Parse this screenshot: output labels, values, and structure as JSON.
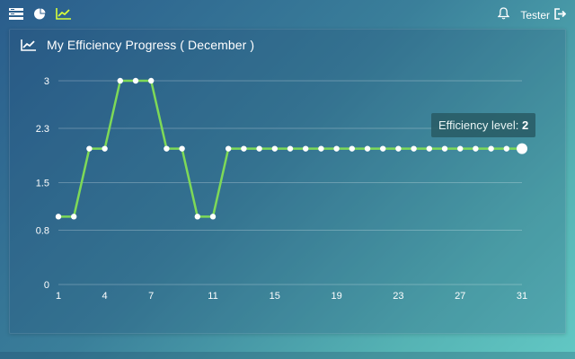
{
  "nav": {
    "icons": [
      "dashboard-icon",
      "pie-chart-icon",
      "line-chart-icon"
    ],
    "active": "line-chart-icon"
  },
  "user": {
    "name": "Tester",
    "bell_icon": "bell-icon",
    "logout_icon": "logout-icon"
  },
  "panel": {
    "title": "My Efficiency Progress ( December )",
    "icon": "line-chart-icon"
  },
  "tooltip": {
    "label": "Efficiency level:",
    "value": "2"
  },
  "colors": {
    "line": "#7ed957",
    "point": "#ffffff",
    "grid": "rgba(255,255,255,0.25)"
  },
  "chart_data": {
    "type": "line",
    "title": "My Efficiency Progress ( December )",
    "xlabel": "",
    "ylabel": "",
    "x": [
      1,
      2,
      3,
      4,
      5,
      6,
      7,
      8,
      9,
      10,
      11,
      12,
      13,
      14,
      15,
      16,
      17,
      18,
      19,
      20,
      21,
      22,
      23,
      24,
      25,
      26,
      27,
      28,
      29,
      30,
      31
    ],
    "values": [
      1,
      1,
      2,
      2,
      3,
      3,
      3,
      2,
      2,
      1,
      1,
      2,
      2,
      2,
      2,
      2,
      2,
      2,
      2,
      2,
      2,
      2,
      2,
      2,
      2,
      2,
      2,
      2,
      2,
      2,
      2
    ],
    "y_ticks": [
      "0",
      "0.8",
      "1.5",
      "2.3",
      "3"
    ],
    "x_ticks": [
      "1",
      "4",
      "7",
      "11",
      "15",
      "19",
      "23",
      "27",
      "31"
    ],
    "ylim": [
      0,
      3
    ],
    "xlim": [
      1,
      31
    ],
    "highlighted_point": 31,
    "grid": true
  }
}
